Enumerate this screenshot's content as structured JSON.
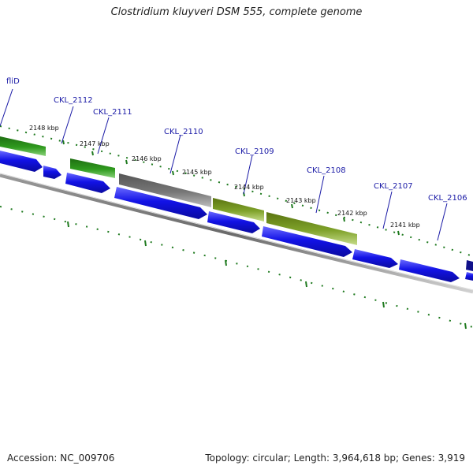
{
  "header": {
    "title": "Clostridium kluyveri DSM 555, complete genome"
  },
  "footer": {
    "accession": "Accession: NC_009706",
    "summary": "Topology: circular; Length: 3,964,618 bp; Genes: 3,919"
  },
  "colors": {
    "cds_blue": "#1010e0",
    "gene_green": "#2e8b1e",
    "gene_olive": "#7a9a22",
    "gene_gray": "#707070",
    "backbone": "#808080",
    "dots": "#1f7a1f",
    "label_blue": "#1a1aa6"
  },
  "gene_labels": [
    {
      "text": "fliD"
    },
    {
      "text": "CKL_2112"
    },
    {
      "text": "CKL_2111"
    },
    {
      "text": "CKL_2110"
    },
    {
      "text": "CKL_2109"
    },
    {
      "text": "CKL_2108"
    },
    {
      "text": "CKL_2107"
    },
    {
      "text": "CKL_2106"
    }
  ],
  "kbp_ticks": [
    {
      "text": "2148 kbp"
    },
    {
      "text": "2147 kbp"
    },
    {
      "text": "2146 kbp"
    },
    {
      "text": "2145 kbp"
    },
    {
      "text": "2144 kbp"
    },
    {
      "text": "2143 kbp"
    },
    {
      "text": "2142 kbp"
    },
    {
      "text": "2141 kbp"
    }
  ]
}
